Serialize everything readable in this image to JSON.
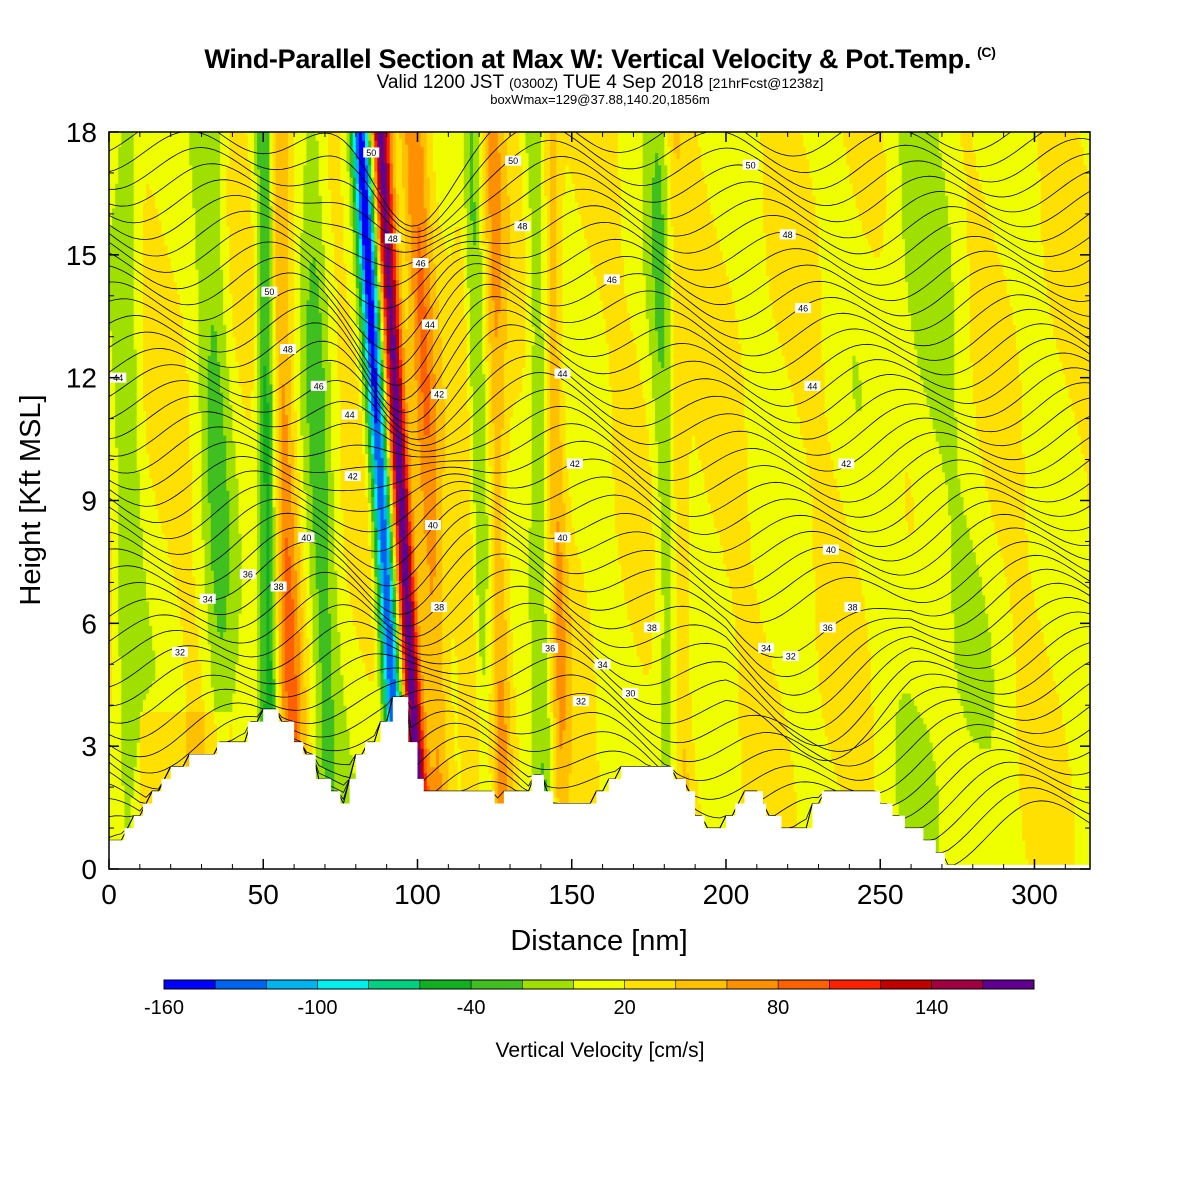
{
  "header": {
    "title": "Wind-Parallel Section at Max W: Vertical Velocity & Pot.Temp.",
    "copyright_mark": "(C)",
    "valid_prefix": "Valid 1200 JST",
    "valid_utc": "(0300Z)",
    "valid_date": "TUE 4 Sep 2018",
    "valid_forecast": "[21hrFcst@1238z]",
    "box_info": "boxWmax=129@37.88,140.20,1856m"
  },
  "colorbar": {
    "label": "Vertical Velocity [cm/s]",
    "tick_labels": [
      "-160",
      "-100",
      "-40",
      "20",
      "80",
      "140"
    ],
    "colors": [
      "#0000ff",
      "#0064f0",
      "#00b4f0",
      "#00f0f0",
      "#00d080",
      "#10b020",
      "#40c020",
      "#a0e000",
      "#f0ff00",
      "#ffe000",
      "#ffc000",
      "#ff9000",
      "#ff6000",
      "#ff2000",
      "#c00000",
      "#a00040",
      "#600090"
    ]
  },
  "chart_data": {
    "type": "heatmap",
    "xlabel": "Distance [nm]",
    "ylabel": "Height [Kft MSL]",
    "xlim": [
      0,
      318
    ],
    "ylim": [
      0,
      18
    ],
    "x_ticks": [
      0,
      50,
      100,
      150,
      200,
      250,
      300
    ],
    "y_ticks": [
      0,
      3,
      6,
      9,
      12,
      15,
      18
    ],
    "field": "vertical velocity (cm/s), filled contours",
    "contour_field": "potential temperature (C), line contours",
    "contour_labels": [
      {
        "x": 85,
        "y": 17.5,
        "text": "50"
      },
      {
        "x": 131,
        "y": 17.3,
        "text": "50"
      },
      {
        "x": 208,
        "y": 17.2,
        "text": "50"
      },
      {
        "x": 134,
        "y": 15.7,
        "text": "48"
      },
      {
        "x": 220,
        "y": 15.5,
        "text": "48"
      },
      {
        "x": 92,
        "y": 15.4,
        "text": "48"
      },
      {
        "x": 101,
        "y": 14.8,
        "text": "46"
      },
      {
        "x": 163,
        "y": 14.4,
        "text": "46"
      },
      {
        "x": 52,
        "y": 14.1,
        "text": "50"
      },
      {
        "x": 225,
        "y": 13.7,
        "text": "46"
      },
      {
        "x": 104,
        "y": 13.3,
        "text": "44"
      },
      {
        "x": 58,
        "y": 12.7,
        "text": "48"
      },
      {
        "x": 3,
        "y": 12.0,
        "text": "44"
      },
      {
        "x": 147,
        "y": 12.1,
        "text": "44"
      },
      {
        "x": 228,
        "y": 11.8,
        "text": "44"
      },
      {
        "x": 68,
        "y": 11.8,
        "text": "46"
      },
      {
        "x": 107,
        "y": 11.6,
        "text": "42"
      },
      {
        "x": 78,
        "y": 11.1,
        "text": "44"
      },
      {
        "x": 151,
        "y": 9.9,
        "text": "42"
      },
      {
        "x": 239,
        "y": 9.9,
        "text": "42"
      },
      {
        "x": 79,
        "y": 9.6,
        "text": "42"
      },
      {
        "x": 105,
        "y": 8.4,
        "text": "40"
      },
      {
        "x": 64,
        "y": 8.1,
        "text": "40"
      },
      {
        "x": 147,
        "y": 8.1,
        "text": "40"
      },
      {
        "x": 234,
        "y": 7.8,
        "text": "40"
      },
      {
        "x": 45,
        "y": 7.2,
        "text": "36"
      },
      {
        "x": 55,
        "y": 6.9,
        "text": "38"
      },
      {
        "x": 32,
        "y": 6.6,
        "text": "34"
      },
      {
        "x": 107,
        "y": 6.4,
        "text": "38"
      },
      {
        "x": 241,
        "y": 6.4,
        "text": "38"
      },
      {
        "x": 176,
        "y": 5.9,
        "text": "38"
      },
      {
        "x": 233,
        "y": 5.9,
        "text": "36"
      },
      {
        "x": 143,
        "y": 5.4,
        "text": "36"
      },
      {
        "x": 23,
        "y": 5.3,
        "text": "32"
      },
      {
        "x": 213,
        "y": 5.4,
        "text": "34"
      },
      {
        "x": 221,
        "y": 5.2,
        "text": "32"
      },
      {
        "x": 160,
        "y": 5.0,
        "text": "34"
      },
      {
        "x": 169,
        "y": 4.3,
        "text": "30"
      },
      {
        "x": 153,
        "y": 4.1,
        "text": "32"
      }
    ]
  }
}
